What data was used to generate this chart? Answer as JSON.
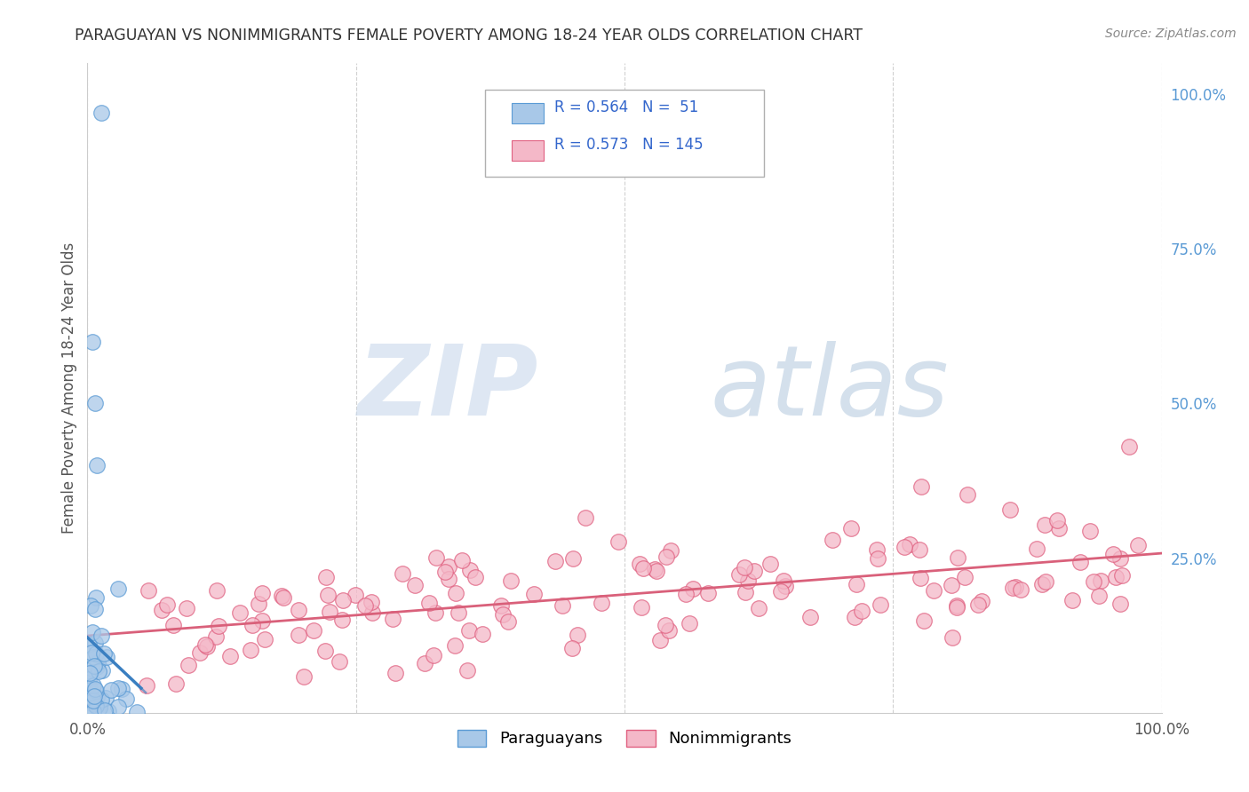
{
  "title": "PARAGUAYAN VS NONIMMIGRANTS FEMALE POVERTY AMONG 18-24 YEAR OLDS CORRELATION CHART",
  "source": "Source: ZipAtlas.com",
  "ylabel": "Female Poverty Among 18-24 Year Olds",
  "xlim": [
    0.0,
    1.0
  ],
  "ylim": [
    0.0,
    1.05
  ],
  "paraguayan_color": "#a8c8e8",
  "paraguayan_edge": "#5b9bd5",
  "nonimmigrant_color": "#f4b8c8",
  "nonimmigrant_edge": "#e06080",
  "trend_paraguayan_color": "#3a7fc1",
  "trend_nonimmigrant_color": "#d9607a",
  "legend_R_paraguayan": "0.564",
  "legend_N_paraguayan": "51",
  "legend_R_nonimmigrant": "0.573",
  "legend_N_nonimmigrant": "145",
  "background_color": "#ffffff",
  "grid_color": "#cccccc",
  "title_color": "#333333",
  "source_color": "#888888",
  "ylabel_color": "#555555",
  "right_label_color": "#5b9bd5",
  "legend_text_color": "#3366cc",
  "watermark_zip_color": "#c8d8ec",
  "watermark_atlas_color": "#b8cce0"
}
